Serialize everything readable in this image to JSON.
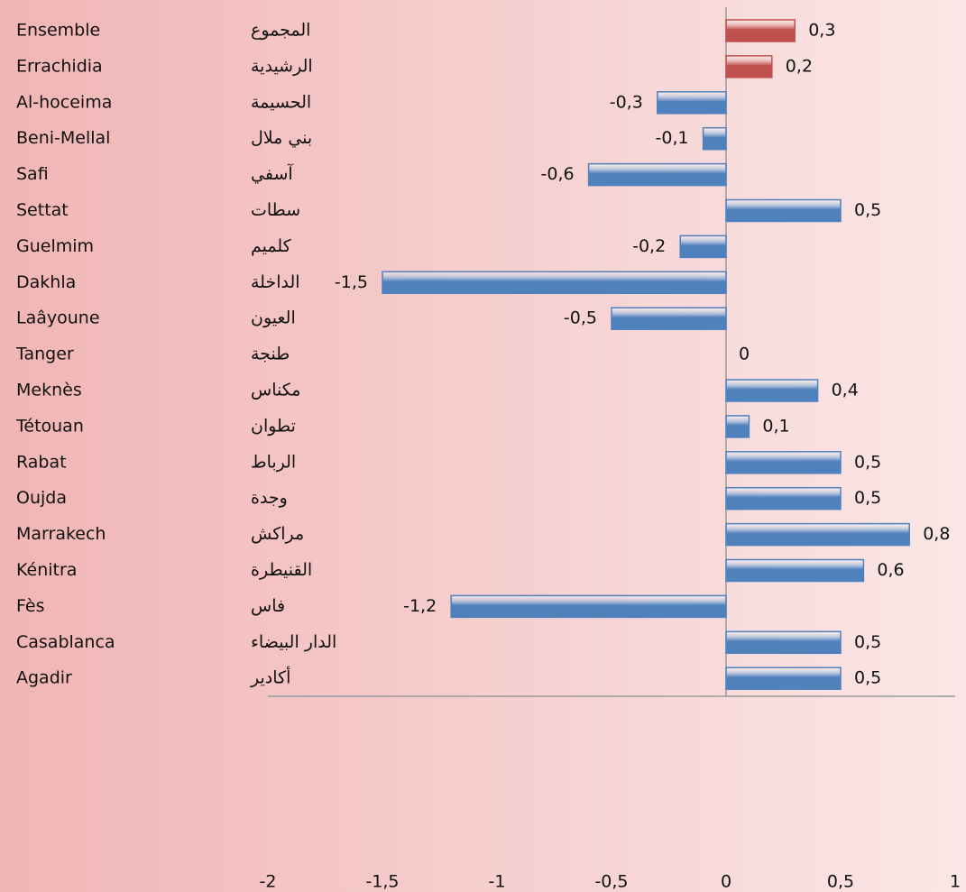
{
  "chart_data": {
    "type": "hbar",
    "categories": [
      "Ensemble",
      "Errachidia",
      "Al-hoceima",
      "Beni-Mellal",
      "Safi",
      "Settat",
      "Guelmim",
      "Dakhla",
      "Laâyoune",
      "Tanger",
      "Meknès",
      "Tétouan",
      "Rabat",
      "Oujda",
      "Marrakech",
      "Kénitra",
      "Fès",
      "Casablanca",
      "Agadir"
    ],
    "categories_ar": [
      "المجموع",
      "الرشيدية",
      "الحسيمة",
      "بني ملال",
      "آسفي",
      "سطات",
      "كلميم",
      "الداخلة",
      "العيون",
      "طنجة",
      "مكناس",
      "تطوان",
      "الرباط",
      "وجدة",
      "مراكش",
      "القنيطرة",
      "فاس",
      "الدار البيضاء",
      "أكادير"
    ],
    "values": [
      0.3,
      0.2,
      -0.3,
      -0.1,
      -0.6,
      0.5,
      -0.2,
      -1.5,
      -0.5,
      0,
      0.4,
      0.1,
      0.5,
      0.5,
      0.8,
      0.6,
      -1.2,
      0.5,
      0.5
    ],
    "value_labels": [
      "0,3",
      "0,2",
      "-0,3",
      "-0,1",
      "-0,6",
      "0,5",
      "-0,2",
      "-1,5",
      "-0,5",
      "0",
      "0,4",
      "0,1",
      "0,5",
      "0,5",
      "0,8",
      "0,6",
      "-1,2",
      "0,5",
      "0,5"
    ],
    "colors": [
      "#c0504d",
      "#c0504d",
      "#4f81bd",
      "#4f81bd",
      "#4f81bd",
      "#4f81bd",
      "#4f81bd",
      "#4f81bd",
      "#4f81bd",
      "#4f81bd",
      "#4f81bd",
      "#4f81bd",
      "#4f81bd",
      "#4f81bd",
      "#4f81bd",
      "#4f81bd",
      "#4f81bd",
      "#4f81bd",
      "#4f81bd"
    ],
    "xlim": [
      -2,
      1
    ],
    "xticks": [
      -2,
      {
        "value": -1.5,
        "label": "-1,5"
      },
      -1,
      {
        "value": -0.5,
        "label": "-0,5"
      },
      0,
      {
        "value": 0.5,
        "label": "0,5"
      },
      1
    ]
  }
}
